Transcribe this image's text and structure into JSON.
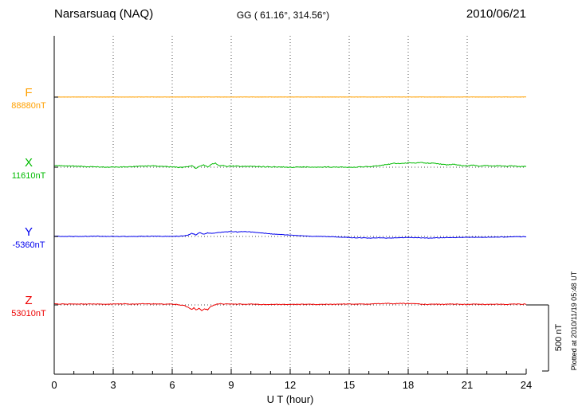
{
  "header": {
    "station": "Narsarsuaq (NAQ)",
    "coordinates": "GG ( 61.16°, 314.56°)",
    "date": "2010/06/21"
  },
  "footer": {
    "xlabel": "U T (hour)"
  },
  "side": {
    "scale_bar_label": "500 nT",
    "plotted_at": "Plotted at 2010/11/19 05:48 UT"
  },
  "chart_data": {
    "type": "line",
    "title": "Narsarsuaq (NAQ)",
    "subtitle_geographic": "GG ( 61.16°, 314.56°)",
    "date": "2010/06/21",
    "xlabel": "U T (hour)",
    "xlim": [
      0,
      24
    ],
    "x_ticks": [
      0,
      3,
      6,
      9,
      12,
      15,
      18,
      21,
      24
    ],
    "grid": "dotted vertical lines every 3 hours; dotted horizontal baseline per trace",
    "scale_bar_nT": 500,
    "scale_bar_label": "500 nT",
    "plotted_at": "Plotted at 2010/11/19 05:48 UT",
    "series": [
      {
        "name": "F",
        "baseline_label": "88880nT",
        "baseline_nT": 88880,
        "color": "#FFA000",
        "noise_nT": 0.6,
        "points": [
          [
            0,
            1
          ],
          [
            24,
            1
          ]
        ]
      },
      {
        "name": "X",
        "baseline_label": "11610nT",
        "baseline_nT": 11610,
        "color": "#00BB00",
        "noise_nT": 3,
        "points": [
          [
            0,
            12
          ],
          [
            0.5,
            10
          ],
          [
            1,
            8
          ],
          [
            1.5,
            6
          ],
          [
            2,
            3
          ],
          [
            3,
            0
          ],
          [
            3.5,
            2
          ],
          [
            4,
            4
          ],
          [
            4.5,
            8
          ],
          [
            5,
            10
          ],
          [
            5.5,
            6
          ],
          [
            6,
            2
          ],
          [
            6.5,
            -2
          ],
          [
            6.8,
            4
          ],
          [
            7,
            12
          ],
          [
            7.2,
            -8
          ],
          [
            7.4,
            6
          ],
          [
            7.6,
            16
          ],
          [
            7.8,
            2
          ],
          [
            8,
            22
          ],
          [
            8.2,
            30
          ],
          [
            8.4,
            10
          ],
          [
            8.6,
            14
          ],
          [
            8.8,
            6
          ],
          [
            9,
            10
          ],
          [
            9.5,
            6
          ],
          [
            10,
            6
          ],
          [
            10.5,
            4
          ],
          [
            11,
            2
          ],
          [
            11.5,
            2
          ],
          [
            12,
            0
          ],
          [
            12.5,
            0
          ],
          [
            13,
            2
          ],
          [
            13.5,
            0
          ],
          [
            14,
            2
          ],
          [
            14.5,
            0
          ],
          [
            15,
            0
          ],
          [
            15.5,
            2
          ],
          [
            16,
            4
          ],
          [
            16.5,
            10
          ],
          [
            17,
            22
          ],
          [
            17.3,
            30
          ],
          [
            17.6,
            26
          ],
          [
            18,
            34
          ],
          [
            18.3,
            30
          ],
          [
            18.6,
            36
          ],
          [
            19,
            30
          ],
          [
            19.3,
            32
          ],
          [
            19.6,
            24
          ],
          [
            20,
            18
          ],
          [
            20.3,
            22
          ],
          [
            20.6,
            14
          ],
          [
            21,
            10
          ],
          [
            21.3,
            16
          ],
          [
            21.6,
            8
          ],
          [
            22,
            12
          ],
          [
            22.3,
            6
          ],
          [
            22.6,
            12
          ],
          [
            23,
            6
          ],
          [
            23.3,
            10
          ],
          [
            23.6,
            4
          ],
          [
            24,
            8
          ]
        ]
      },
      {
        "name": "Y",
        "baseline_label": "-5360nT",
        "baseline_nT": -5360,
        "color": "#0000EE",
        "noise_nT": 2,
        "points": [
          [
            0,
            2
          ],
          [
            1,
            0
          ],
          [
            2,
            2
          ],
          [
            3,
            0
          ],
          [
            4,
            0
          ],
          [
            5,
            2
          ],
          [
            6,
            0
          ],
          [
            6.5,
            4
          ],
          [
            6.8,
            10
          ],
          [
            7,
            24
          ],
          [
            7.2,
            12
          ],
          [
            7.4,
            28
          ],
          [
            7.6,
            18
          ],
          [
            7.8,
            26
          ],
          [
            8,
            24
          ],
          [
            8.5,
            32
          ],
          [
            9,
            38
          ],
          [
            9.3,
            34
          ],
          [
            9.6,
            38
          ],
          [
            10,
            34
          ],
          [
            10.5,
            28
          ],
          [
            11,
            20
          ],
          [
            11.5,
            14
          ],
          [
            12,
            10
          ],
          [
            12.5,
            6
          ],
          [
            13,
            2
          ],
          [
            13.5,
            0
          ],
          [
            14,
            -2
          ],
          [
            14.5,
            -4
          ],
          [
            15,
            -8
          ],
          [
            15.5,
            -10
          ],
          [
            16,
            -12
          ],
          [
            16.5,
            -10
          ],
          [
            17,
            -12
          ],
          [
            17.5,
            -10
          ],
          [
            18,
            -8
          ],
          [
            18.5,
            -10
          ],
          [
            19,
            -12
          ],
          [
            19.5,
            -10
          ],
          [
            20,
            -8
          ],
          [
            20.5,
            -8
          ],
          [
            21,
            -6
          ],
          [
            21.5,
            -6
          ],
          [
            22,
            -6
          ],
          [
            22.5,
            -4
          ],
          [
            23,
            -4
          ],
          [
            23.5,
            -2
          ],
          [
            24,
            -2
          ]
        ]
      },
      {
        "name": "Z",
        "baseline_label": "53010nT",
        "baseline_nT": 53010,
        "color": "#EE0000",
        "noise_nT": 2.5,
        "points": [
          [
            0,
            8
          ],
          [
            0.5,
            6
          ],
          [
            1,
            8
          ],
          [
            1.5,
            6
          ],
          [
            2,
            8
          ],
          [
            2.5,
            6
          ],
          [
            3,
            6
          ],
          [
            3.5,
            8
          ],
          [
            4,
            6
          ],
          [
            4.5,
            8
          ],
          [
            5,
            8
          ],
          [
            5.5,
            6
          ],
          [
            6,
            6
          ],
          [
            6.3,
            2
          ],
          [
            6.6,
            -4
          ],
          [
            6.8,
            -18
          ],
          [
            7,
            -34
          ],
          [
            7.1,
            -20
          ],
          [
            7.2,
            -38
          ],
          [
            7.35,
            -26
          ],
          [
            7.5,
            -42
          ],
          [
            7.65,
            -30
          ],
          [
            7.8,
            -36
          ],
          [
            7.9,
            -20
          ],
          [
            8,
            -10
          ],
          [
            8.2,
            2
          ],
          [
            8.4,
            10
          ],
          [
            8.6,
            4
          ],
          [
            8.8,
            8
          ],
          [
            9,
            6
          ],
          [
            9.5,
            6
          ],
          [
            10,
            6
          ],
          [
            10.5,
            4
          ],
          [
            11,
            4
          ],
          [
            11.5,
            4
          ],
          [
            12,
            4
          ],
          [
            12.5,
            4
          ],
          [
            13,
            4
          ],
          [
            13.5,
            4
          ],
          [
            14,
            4
          ],
          [
            14.5,
            6
          ],
          [
            15,
            6
          ],
          [
            15.5,
            6
          ],
          [
            16,
            6
          ],
          [
            16.5,
            10
          ],
          [
            17,
            12
          ],
          [
            17.3,
            8
          ],
          [
            17.6,
            12
          ],
          [
            18,
            10
          ],
          [
            18.3,
            12
          ],
          [
            18.6,
            6
          ],
          [
            19,
            4
          ],
          [
            19.3,
            8
          ],
          [
            19.6,
            4
          ],
          [
            20,
            6
          ],
          [
            20.5,
            6
          ],
          [
            21,
            4
          ],
          [
            21.5,
            6
          ],
          [
            22,
            4
          ],
          [
            22.5,
            6
          ],
          [
            23,
            4
          ],
          [
            23.5,
            6
          ],
          [
            24,
            6
          ]
        ]
      }
    ]
  }
}
